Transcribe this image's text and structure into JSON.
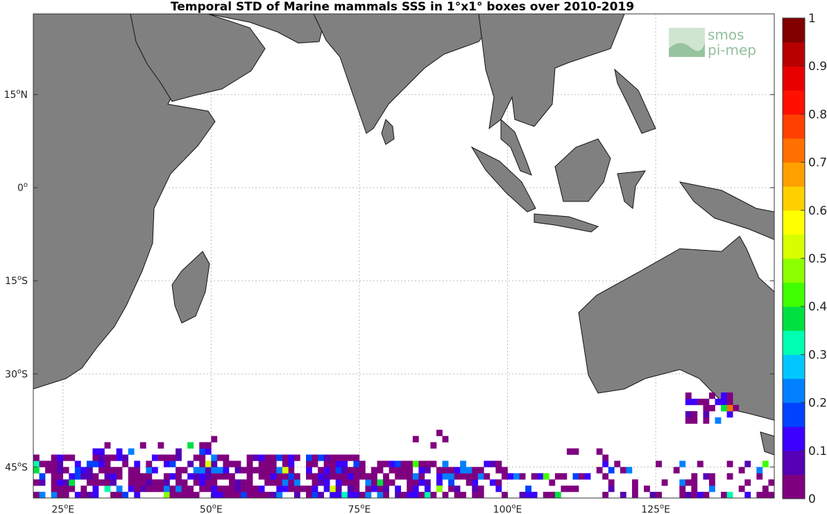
{
  "title": "Temporal STD of Marine mammals SSS in 1°x1° boxes over 2010-2019",
  "map": {
    "lon_range": [
      20,
      145
    ],
    "lat_range": [
      -50,
      28
    ],
    "lon_ticks": [
      {
        "value": 25,
        "label": "25°E"
      },
      {
        "value": 50,
        "label": "50°E"
      },
      {
        "value": 75,
        "label": "75°E"
      },
      {
        "value": 100,
        "label": "100°E"
      },
      {
        "value": 125,
        "label": "125°E"
      }
    ],
    "lat_ticks": [
      {
        "value": 15,
        "label": "15°N"
      },
      {
        "value": 0,
        "label": "0°"
      },
      {
        "value": -15,
        "label": "15°S"
      },
      {
        "value": -30,
        "label": "30°S"
      },
      {
        "value": -45,
        "label": "45°S"
      }
    ],
    "grid": true,
    "land_color": "#808080",
    "ocean_color": "#ffffff"
  },
  "colorbar": {
    "min": 0,
    "max": 1,
    "ticks": [
      "0",
      "0.1",
      "0.2",
      "0.3",
      "0.4",
      "0.5",
      "0.6",
      "0.7",
      "0.8",
      "0.9",
      "1"
    ],
    "colors": [
      "#7f007f",
      "#5500b4",
      "#3b00ff",
      "#0042ff",
      "#0080ff",
      "#00c8ff",
      "#00ffb0",
      "#00e040",
      "#40ff00",
      "#8cff00",
      "#d8ff00",
      "#ffff00",
      "#ffd000",
      "#ffa000",
      "#ff7000",
      "#ff4000",
      "#ff1000",
      "#e80000",
      "#b80000",
      "#800000"
    ]
  },
  "logo": {
    "line1": "smos",
    "line2": "pi-mep"
  }
}
